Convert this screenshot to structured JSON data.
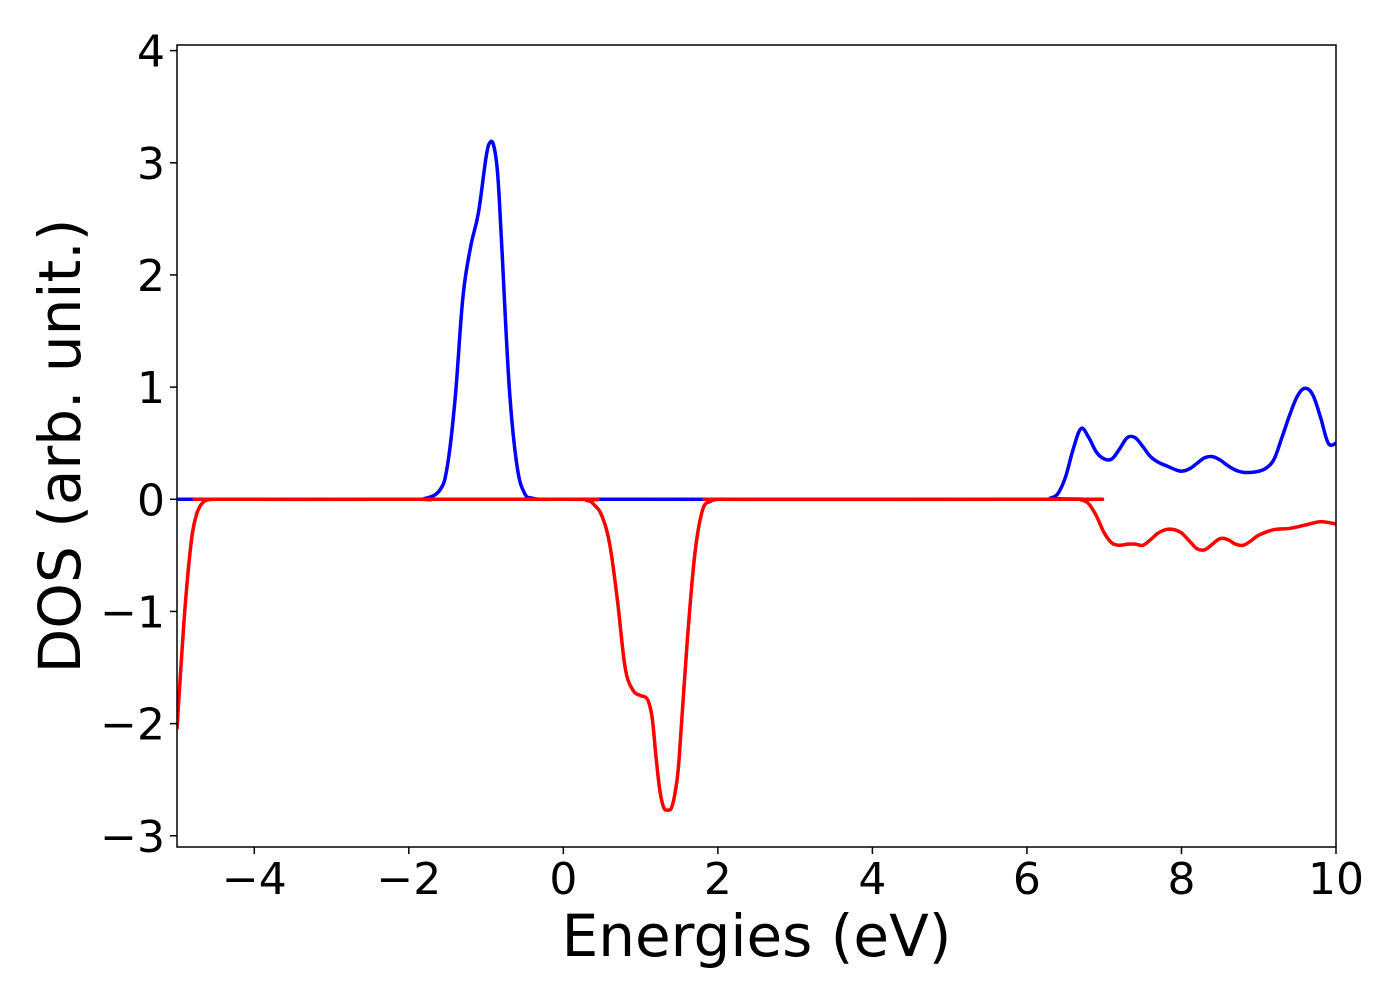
{
  "chart_data": {
    "type": "line",
    "title": "",
    "xlabel": "Energies (eV)",
    "ylabel": "DOS (arb. unit.)",
    "xlim": [
      -5,
      10
    ],
    "ylim": [
      -3.1,
      4.05
    ],
    "xticks": [
      -4,
      -2,
      0,
      2,
      4,
      6,
      8,
      10
    ],
    "xtick_labels": [
      "−4",
      "−2",
      "0",
      "2",
      "4",
      "6",
      "8",
      "10"
    ],
    "yticks": [
      -3,
      -2,
      -1,
      0,
      1,
      2,
      3,
      4
    ],
    "ytick_labels": [
      "−3",
      "−2",
      "−1",
      "0",
      "1",
      "2",
      "3",
      "4"
    ],
    "grid": false,
    "legend": "none",
    "series": [
      {
        "color": "#0000ff",
        "x": [
          -5,
          -2,
          -1.8,
          -1.6,
          -1.5,
          -1.4,
          -1.3,
          -1.2,
          -1.1,
          -1.0,
          -0.95,
          -0.9,
          -0.85,
          -0.8,
          -0.7,
          -0.6,
          -0.5,
          -0.4,
          -0.3,
          -0.2,
          0,
          6.2,
          6.3,
          6.4,
          6.5,
          6.6,
          6.7,
          6.8,
          6.9,
          7.0,
          7.1,
          7.2,
          7.3,
          7.4,
          7.5,
          7.6,
          7.7,
          7.8,
          7.9,
          8.0,
          8.1,
          8.2,
          8.3,
          8.4,
          8.5,
          8.6,
          8.7,
          8.8,
          8.9,
          9.0,
          9.1,
          9.2,
          9.3,
          9.4,
          9.5,
          9.6,
          9.7,
          9.8,
          9.9,
          10.0
        ],
        "y": [
          0,
          0,
          0.005,
          0.08,
          0.3,
          0.9,
          1.8,
          2.25,
          2.55,
          3.05,
          3.18,
          3.15,
          2.9,
          2.3,
          1.0,
          0.3,
          0.05,
          0.01,
          0,
          0,
          0,
          0,
          0.01,
          0.05,
          0.2,
          0.45,
          0.63,
          0.55,
          0.42,
          0.36,
          0.36,
          0.45,
          0.55,
          0.55,
          0.47,
          0.38,
          0.33,
          0.3,
          0.27,
          0.25,
          0.27,
          0.32,
          0.37,
          0.38,
          0.35,
          0.3,
          0.26,
          0.24,
          0.24,
          0.25,
          0.28,
          0.36,
          0.55,
          0.75,
          0.92,
          0.99,
          0.93,
          0.73,
          0.5,
          0.5
        ]
      },
      {
        "color": "#ff0000",
        "x": [
          -5.0,
          -4.95,
          -4.9,
          -4.85,
          -4.8,
          -4.75,
          -4.7,
          -4.65,
          -4.6,
          -4.5,
          -4.4,
          0,
          0.3,
          0.4,
          0.5,
          0.6,
          0.7,
          0.8,
          0.9,
          1.0,
          1.05,
          1.1,
          1.15,
          1.2,
          1.25,
          1.3,
          1.35,
          1.4,
          1.45,
          1.5,
          1.6,
          1.7,
          1.8,
          1.9,
          2.0,
          2.1,
          2.2,
          6.6,
          6.7,
          6.8,
          6.9,
          7.0,
          7.1,
          7.2,
          7.3,
          7.4,
          7.5,
          7.6,
          7.7,
          7.8,
          7.9,
          8.0,
          8.1,
          8.2,
          8.3,
          8.4,
          8.5,
          8.6,
          8.7,
          8.8,
          8.9,
          9.0,
          9.2,
          9.4,
          9.6,
          9.8,
          10.0
        ],
        "y": [
          -2.05,
          -1.5,
          -1.0,
          -0.6,
          -0.3,
          -0.14,
          -0.06,
          -0.02,
          -0.005,
          0,
          0,
          0,
          -0.01,
          -0.05,
          -0.15,
          -0.4,
          -0.9,
          -1.5,
          -1.7,
          -1.75,
          -1.76,
          -1.8,
          -1.95,
          -2.3,
          -2.6,
          -2.75,
          -2.77,
          -2.75,
          -2.6,
          -2.3,
          -1.3,
          -0.5,
          -0.1,
          -0.02,
          0,
          0,
          0,
          0,
          -0.005,
          -0.04,
          -0.15,
          -0.3,
          -0.39,
          -0.41,
          -0.4,
          -0.4,
          -0.41,
          -0.36,
          -0.3,
          -0.27,
          -0.27,
          -0.3,
          -0.37,
          -0.44,
          -0.45,
          -0.4,
          -0.35,
          -0.36,
          -0.4,
          -0.41,
          -0.37,
          -0.32,
          -0.27,
          -0.26,
          -0.23,
          -0.2,
          -0.22
        ]
      }
    ]
  }
}
